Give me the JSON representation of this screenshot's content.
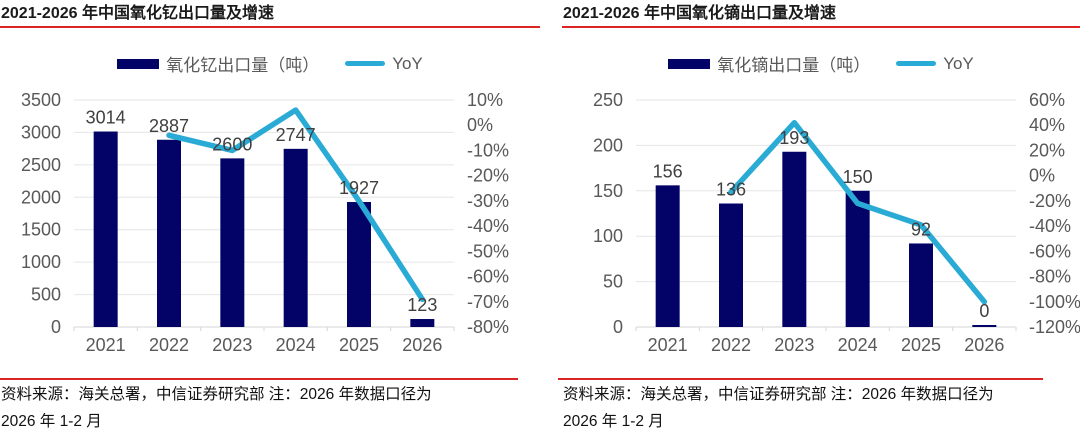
{
  "colors": {
    "bar": "#020267",
    "line": "#2AABD5",
    "grid": "#E6E6E6",
    "axis_line": "#D6D6D6",
    "axis_text": "#595959",
    "value_text": "#404040",
    "accent_red": "#DB2424",
    "title_text": "#1A1A1A",
    "note_text": "#111111"
  },
  "panels": [
    {
      "title": "2021-2026 年中国氧化钇出口量及增速",
      "note_line1": "资料来源：海关总署，中信证券研究部  注：2026 年数据口径为",
      "note_line2": "2026 年 1-2 月"
    },
    {
      "title": "2021-2026 年中国氧化镝出口量及增速",
      "note_line1": "资料来源：海关总署，中信证券研究部  注：2026 年数据口径为",
      "note_line2": "2026 年 1-2 月"
    }
  ],
  "chart_data": [
    {
      "type": "bar+line combo",
      "title": "2021-2026 年中国氧化钇出口量及增速",
      "categories": [
        "2021",
        "2022",
        "2023",
        "2024",
        "2025",
        "2026"
      ],
      "series": [
        {
          "name": "氧化钇出口量（吨）",
          "type": "bar",
          "axis": "left",
          "values": [
            3014,
            2887,
            2600,
            2747,
            1927,
            123
          ]
        },
        {
          "name": "YoY",
          "type": "line",
          "axis": "right",
          "unit": "%",
          "values": [
            null,
            -4,
            -10,
            6,
            -30,
            -69
          ]
        }
      ],
      "left_axis": {
        "min": 0,
        "max": 3500,
        "step": 500
      },
      "right_axis": {
        "min": -80,
        "max": 10,
        "step": 10,
        "suffix": "%"
      },
      "grid": true,
      "legend_position": "top",
      "data_labels": true
    },
    {
      "type": "bar+line combo",
      "title": "2021-2026 年中国氧化镝出口量及增速",
      "categories": [
        "2021",
        "2022",
        "2023",
        "2024",
        "2025",
        "2026"
      ],
      "series": [
        {
          "name": "氧化镝出口量（吨）",
          "type": "bar",
          "axis": "left",
          "values": [
            156,
            136,
            193,
            150,
            92,
            0
          ]
        },
        {
          "name": "YoY",
          "type": "line",
          "axis": "right",
          "unit": "%",
          "values": [
            null,
            -13,
            42,
            -22,
            -39,
            -100
          ]
        }
      ],
      "left_axis": {
        "min": 0,
        "max": 250,
        "step": 50
      },
      "right_axis": {
        "min": -120,
        "max": 60,
        "step": 20,
        "suffix": "%"
      },
      "grid": true,
      "legend_position": "top",
      "data_labels": true
    }
  ]
}
